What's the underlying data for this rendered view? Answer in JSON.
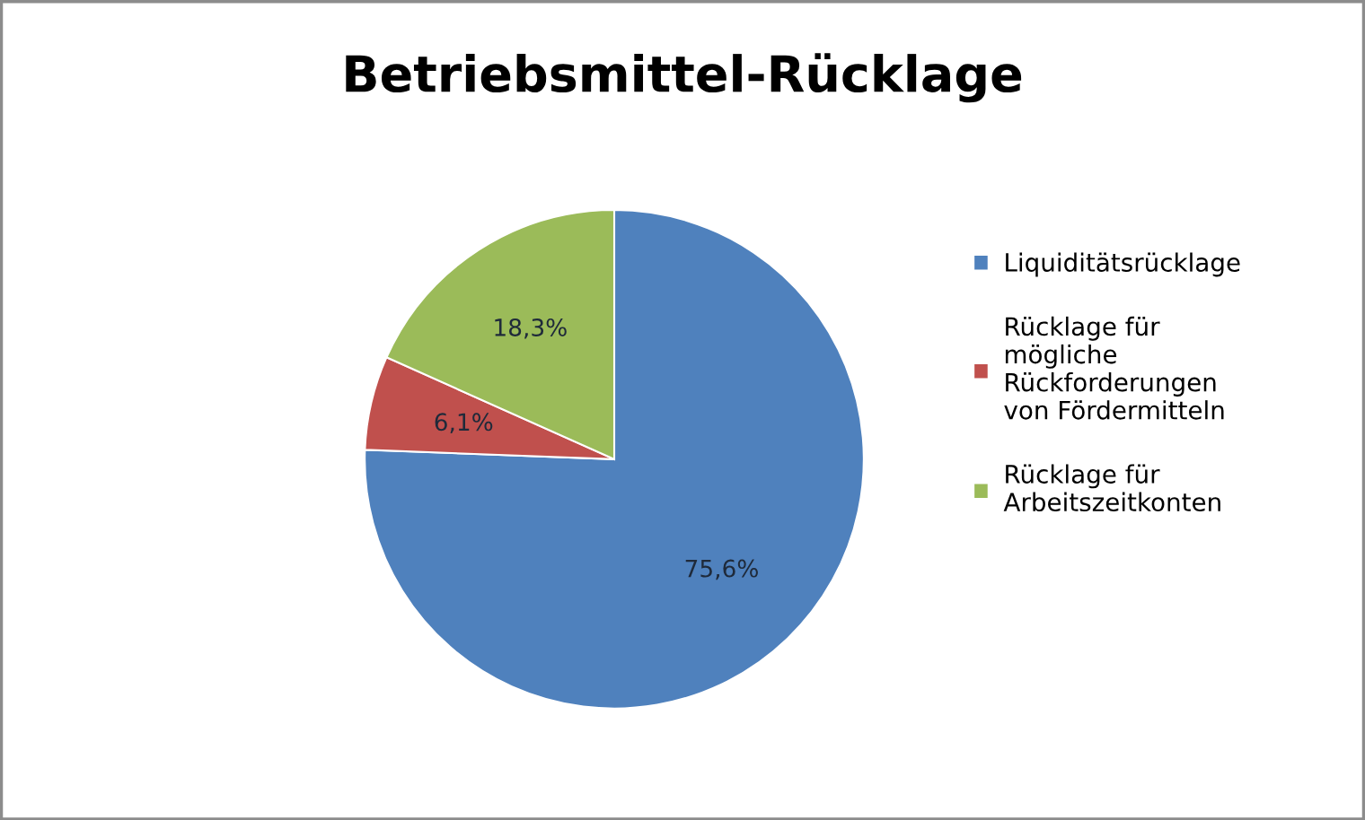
{
  "chart_data": {
    "type": "pie",
    "title": "Betriebsmittel-Rücklage",
    "categories": [
      "Liquiditätsrücklage",
      "Rücklage für mögliche Rückforderungen von Fördermitteln",
      "Rücklage für Arbeitszeitkonten"
    ],
    "values": [
      75.6,
      6.1,
      18.3
    ],
    "colors": [
      "#4f81bd",
      "#c0504d",
      "#9bbb59"
    ],
    "value_labels": [
      "75,6%",
      "6,1%",
      "18,3%"
    ],
    "legend": "right"
  }
}
